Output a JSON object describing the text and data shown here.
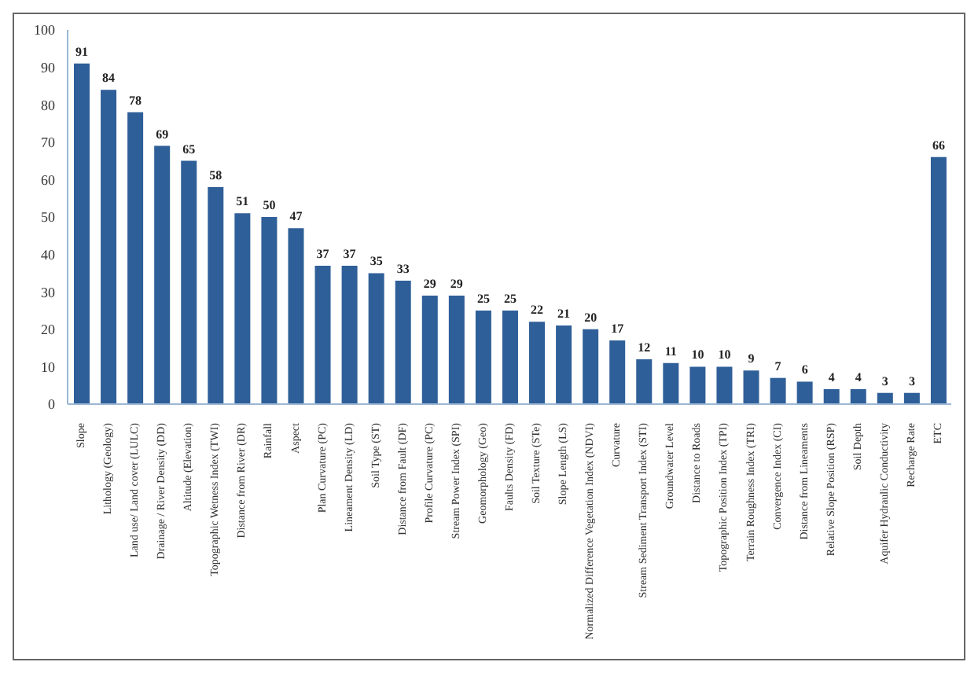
{
  "chart_data": {
    "type": "bar",
    "categories": [
      "Slope",
      "Lithology (Geology)",
      "Land use/ Land cover (LULC)",
      "Drainage / River Density (DD)",
      "Altitude (Elevation)",
      "Topographic Wetness Index (TWI)",
      "Distance from River (DR)",
      "Rainfall",
      "Aspect",
      "Plan Curvature (PC)",
      "Lineament Density (LD)",
      "Soil Type (ST)",
      "Distance from Fault (DF)",
      "Profile Curvature (PC)",
      "Stream Power Index (SPI)",
      "Geomorphology (Geo)",
      "Faults Density (FD)",
      "Soil Texture (STe)",
      "Slope Length (LS)",
      "Normalized Difference Vegetation Index (NDVI)",
      "Curvature",
      "Stream Sediment Transport Index (STI)",
      "Groundwater Level",
      "Distance to Roads",
      "Topographic Position Index (TPI)",
      "Terrain Roughness Index (TRI)",
      "Convergence Index (CI)",
      "Distance from Lineaments",
      "Relative Slope Position (RSP)",
      "Soil Depth",
      "Aquifer Hydraulic Conductivity",
      "Recharge Rate",
      "ETC"
    ],
    "values": [
      91,
      84,
      78,
      69,
      65,
      58,
      51,
      50,
      47,
      37,
      37,
      35,
      33,
      29,
      29,
      25,
      25,
      22,
      21,
      20,
      17,
      12,
      11,
      10,
      10,
      9,
      7,
      6,
      4,
      4,
      3,
      3,
      66
    ],
    "color": "#2f5f98",
    "ylim": [
      0,
      100
    ],
    "yticks": [
      0,
      10,
      20,
      30,
      40,
      50,
      60,
      70,
      80,
      90,
      100
    ],
    "grid": false,
    "data_labels": true
  }
}
